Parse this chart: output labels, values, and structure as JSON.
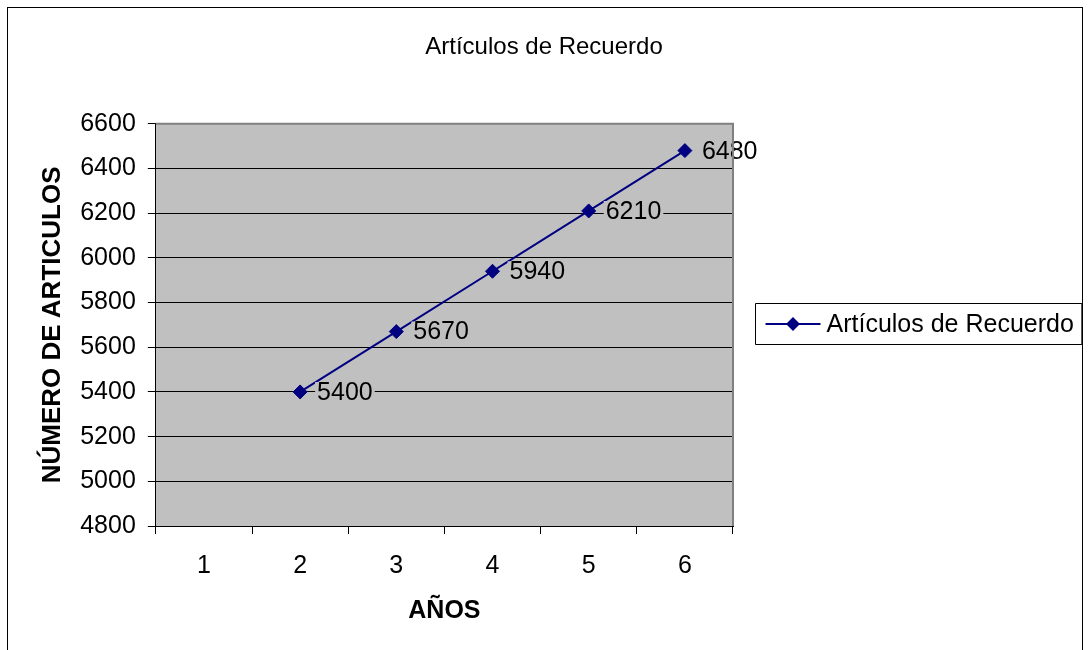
{
  "chart_data": {
    "type": "line",
    "title": "Artículos de Recuerdo",
    "xlabel": "AÑOS",
    "ylabel": "NÚMERO DE ARTICULOS",
    "categories": [
      "1",
      "2",
      "3",
      "4",
      "5",
      "6"
    ],
    "series": [
      {
        "name": "Artículos de Recuerdo",
        "color": "#000080",
        "values": [
          null,
          5400,
          5670,
          5940,
          6210,
          6480
        ]
      }
    ],
    "ylim": [
      4800,
      6600
    ],
    "yticks": [
      4800,
      5000,
      5200,
      5400,
      5600,
      5800,
      6000,
      6200,
      6400,
      6600
    ],
    "grid": "y",
    "legend": "right",
    "marker": "diamond",
    "line_style": "solid",
    "data_labels": true
  }
}
